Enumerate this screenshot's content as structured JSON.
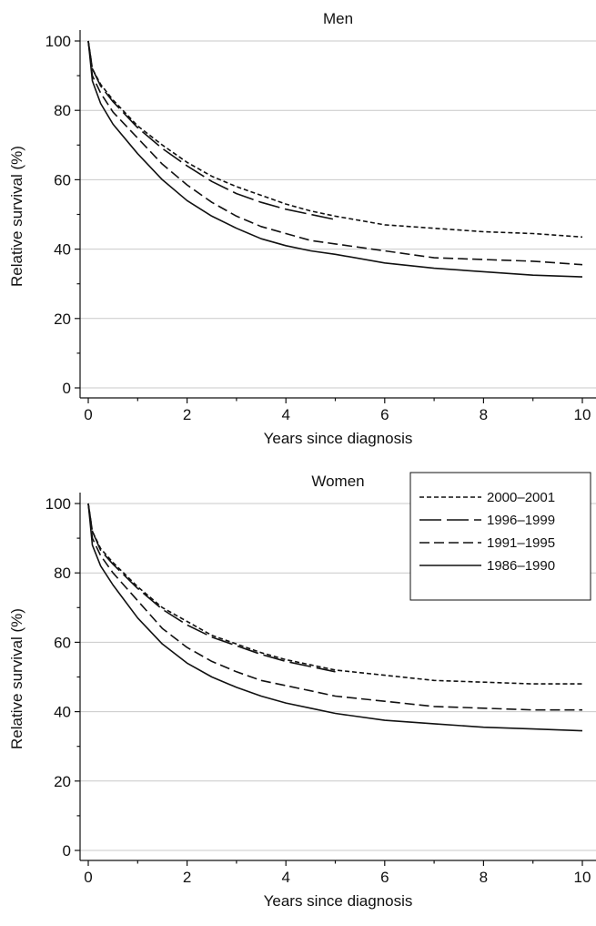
{
  "chart_data": [
    {
      "type": "line",
      "title": "Men",
      "xlabel": "Years since diagnosis",
      "ylabel": "Relative survival (%)",
      "xlim": [
        0,
        10
      ],
      "ylim": [
        0,
        100
      ],
      "xticks": [
        0,
        2,
        4,
        6,
        8,
        10
      ],
      "yticks": [
        0,
        20,
        40,
        60,
        80,
        100
      ],
      "grid": "horizontal",
      "legend": false,
      "series": [
        {
          "name": "2000–2001",
          "x": [
            0,
            0.083,
            0.25,
            0.5,
            1,
            1.5,
            2,
            2.5,
            3,
            3.5,
            4,
            4.5,
            5,
            6,
            7,
            8,
            9,
            10
          ],
          "values": [
            100,
            92,
            87.5,
            83,
            75.5,
            70,
            65,
            61,
            58,
            55.5,
            53,
            51,
            49.5,
            47,
            46,
            45,
            44.5,
            43.5
          ]
        },
        {
          "name": "1996–1999",
          "x": [
            0,
            0.083,
            0.25,
            0.5,
            1,
            1.5,
            2,
            2.5,
            3,
            3.5,
            4,
            4.5,
            5
          ],
          "values": [
            100,
            92,
            87,
            82.5,
            75,
            69,
            64,
            59.5,
            56,
            53.5,
            51.5,
            50,
            48.5
          ]
        },
        {
          "name": "1991–1995",
          "x": [
            0,
            0.083,
            0.25,
            0.5,
            1,
            1.5,
            2,
            2.5,
            3,
            3.5,
            4,
            4.5,
            5,
            6,
            7,
            8,
            9,
            10
          ],
          "values": [
            100,
            90,
            85,
            79.5,
            72,
            64.5,
            58.5,
            53.5,
            49.5,
            46.5,
            44.5,
            42.5,
            41.5,
            39.5,
            37.5,
            37,
            36.5,
            35.5
          ]
        },
        {
          "name": "1986–1990",
          "x": [
            0,
            0.083,
            0.25,
            0.5,
            1,
            1.5,
            2,
            2.5,
            3,
            3.5,
            4,
            4.5,
            5,
            6,
            7,
            8,
            9,
            10
          ],
          "values": [
            100,
            88.5,
            82,
            76,
            67.5,
            60,
            54,
            49.5,
            46,
            43,
            41,
            39.5,
            38.5,
            36,
            34.5,
            33.5,
            32.5,
            32
          ]
        }
      ]
    },
    {
      "type": "line",
      "title": "Women",
      "xlabel": "Years since diagnosis",
      "ylabel": "Relative survival (%)",
      "xlim": [
        0,
        10
      ],
      "ylim": [
        0,
        100
      ],
      "xticks": [
        0,
        2,
        4,
        6,
        8,
        10
      ],
      "yticks": [
        0,
        20,
        40,
        60,
        80,
        100
      ],
      "grid": "horizontal",
      "legend": "top-right",
      "series": [
        {
          "name": "2000–2001",
          "x": [
            0,
            0.083,
            0.25,
            0.5,
            1,
            1.5,
            2,
            2.5,
            3,
            3.5,
            4,
            4.5,
            5,
            6,
            7,
            8,
            9,
            10
          ],
          "values": [
            100,
            92,
            87,
            83,
            76,
            70,
            66,
            62,
            59.5,
            57,
            55,
            53.5,
            52,
            50.5,
            49,
            48.5,
            48,
            48
          ]
        },
        {
          "name": "1996–1999",
          "x": [
            0,
            0.083,
            0.25,
            0.5,
            1,
            1.5,
            2,
            2.5,
            3,
            3.5,
            4,
            4.5,
            5
          ],
          "values": [
            100,
            92,
            86.5,
            82.5,
            75.5,
            69.5,
            65,
            61.5,
            59,
            56.5,
            54.5,
            53,
            51.5
          ]
        },
        {
          "name": "1991–1995",
          "x": [
            0,
            0.083,
            0.25,
            0.5,
            1,
            1.5,
            2,
            2.5,
            3,
            3.5,
            4,
            4.5,
            5,
            6,
            7,
            8,
            9,
            10
          ],
          "values": [
            100,
            90,
            85,
            80,
            72,
            64,
            58.5,
            54.5,
            51.5,
            49,
            47.5,
            46,
            44.5,
            43,
            41.5,
            41,
            40.5,
            40.5
          ]
        },
        {
          "name": "1986–1990",
          "x": [
            0,
            0.083,
            0.25,
            0.5,
            1,
            1.5,
            2,
            2.5,
            3,
            3.5,
            4,
            4.5,
            5,
            6,
            7,
            8,
            9,
            10
          ],
          "values": [
            100,
            88,
            82,
            76.5,
            67,
            59.5,
            54,
            50,
            47,
            44.5,
            42.5,
            41,
            39.5,
            37.5,
            36.5,
            35.5,
            35,
            34.5
          ]
        }
      ]
    }
  ]
}
